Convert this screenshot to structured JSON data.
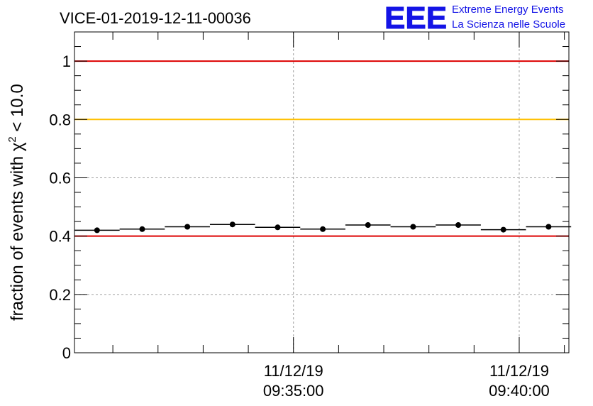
{
  "chart_data": {
    "type": "scatter",
    "title": "VICE-01-2019-12-11-00036",
    "ylabel_prefix": "fraction of events with ",
    "ylabel_symbol": "χ",
    "ylabel_superscript": "2",
    "ylabel_suffix": " < 10.0",
    "xlabel": "",
    "ylim": [
      0,
      1.1
    ],
    "yticks": [
      "0",
      "0.2",
      "0.4",
      "0.6",
      "0.8",
      "1"
    ],
    "ytick_values": [
      0,
      0.2,
      0.4,
      0.6,
      0.8,
      1.0
    ],
    "xticks": [
      {
        "date": "11/12/19",
        "time": "09:35:00",
        "minutes": 35
      },
      {
        "date": "11/12/19",
        "time": "09:40:00",
        "minutes": 40
      }
    ],
    "x_range_minutes": [
      30.15,
      41.1
    ],
    "bin_width_minutes": 0.5,
    "points_minutes": [
      30.65,
      31.65,
      32.65,
      33.65,
      34.65,
      35.65,
      36.65,
      37.65,
      38.65,
      39.65,
      40.65
    ],
    "values": [
      0.42,
      0.424,
      0.432,
      0.44,
      0.43,
      0.424,
      0.438,
      0.432,
      0.438,
      0.422,
      0.432
    ],
    "reference_lines": [
      {
        "y": 1.0,
        "color": "#dd0000"
      },
      {
        "y": 0.8,
        "color": "#ffc000"
      },
      {
        "y": 0.4,
        "color": "#dd0000"
      }
    ],
    "grid": true
  },
  "logo": {
    "mark": "EEE",
    "line1": "Extreme Energy Events",
    "line2": "La Scienza nelle Scuole",
    "color": "#1414e6"
  }
}
